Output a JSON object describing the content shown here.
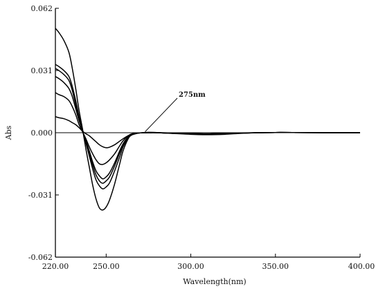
{
  "chart_data": {
    "type": "line",
    "title": "",
    "xlabel": "Wavelength(nm)",
    "ylabel": "Abs",
    "xlim": [
      220,
      400
    ],
    "ylim": [
      -0.062,
      0.062
    ],
    "x_ticks": [
      220,
      250,
      300,
      350,
      400
    ],
    "x_tick_labels": [
      "220.00",
      "250.00",
      "300.00",
      "350.00",
      "400.00"
    ],
    "y_ticks": [
      0.062,
      0.031,
      0.0,
      -0.031,
      -0.062
    ],
    "y_tick_labels": [
      "0.062",
      "0.031",
      "0.000",
      "-0.031",
      "-0.062"
    ],
    "grid": false,
    "legend": "none",
    "reference_line_y": 0,
    "annotation": {
      "text": "275nm",
      "x": 273,
      "y": 0.0005
    },
    "series": [
      {
        "x": [
          220,
          222,
          225,
          228,
          230,
          232,
          234,
          236,
          238,
          240,
          242,
          244,
          246,
          248,
          250,
          252,
          255,
          258,
          260,
          263,
          265,
          268,
          270,
          275,
          280,
          290,
          300,
          310,
          320,
          330,
          340,
          350,
          360,
          380,
          400
        ],
        "values": [
          0.008,
          0.0075,
          0.007,
          0.006,
          0.005,
          0.004,
          0.0025,
          0.0008,
          -0.0005,
          -0.0015,
          -0.003,
          -0.0045,
          -0.006,
          -0.007,
          -0.0075,
          -0.0072,
          -0.006,
          -0.0042,
          -0.003,
          -0.0015,
          -0.0008,
          -0.0003,
          -0.0001,
          0,
          0,
          -0.0004,
          -0.0008,
          -0.001,
          -0.0008,
          -0.0003,
          0,
          0.0001,
          0.0001,
          0,
          0
        ]
      },
      {
        "x": [
          220,
          222,
          225,
          228,
          230,
          232,
          234,
          236,
          238,
          240,
          242,
          244,
          246,
          248,
          250,
          252,
          255,
          258,
          260,
          263,
          265,
          268,
          270,
          275,
          280,
          290,
          300,
          310,
          320,
          330,
          340,
          350,
          360,
          380,
          400
        ],
        "values": [
          0.02,
          0.019,
          0.018,
          0.016,
          0.013,
          0.009,
          0.004,
          0.0005,
          -0.003,
          -0.007,
          -0.0105,
          -0.0135,
          -0.0155,
          -0.0158,
          -0.015,
          -0.0135,
          -0.0105,
          -0.0065,
          -0.004,
          -0.0015,
          -0.0006,
          -0.0002,
          -0.0001,
          0,
          0,
          -0.0003,
          -0.0006,
          -0.0008,
          -0.0006,
          -0.0002,
          0,
          0.0001,
          0.0001,
          0,
          0
        ]
      },
      {
        "x": [
          220,
          222,
          225,
          228,
          230,
          232,
          234,
          236,
          238,
          240,
          242,
          244,
          246,
          248,
          250,
          252,
          255,
          258,
          260,
          263,
          265,
          268,
          270,
          275,
          280,
          290,
          300,
          310,
          320,
          330,
          340,
          350,
          360,
          380,
          400
        ],
        "values": [
          0.028,
          0.027,
          0.025,
          0.022,
          0.018,
          0.012,
          0.006,
          0.001,
          -0.004,
          -0.009,
          -0.0145,
          -0.019,
          -0.0215,
          -0.023,
          -0.022,
          -0.02,
          -0.015,
          -0.009,
          -0.0055,
          -0.002,
          -0.0008,
          -0.0003,
          -0.0001,
          0,
          0,
          -0.0003,
          -0.0005,
          -0.0007,
          -0.0005,
          -0.0002,
          0,
          0.0001,
          0.0001,
          0,
          0
        ]
      },
      {
        "x": [
          220,
          222,
          225,
          228,
          230,
          232,
          234,
          236,
          238,
          240,
          242,
          244,
          246,
          248,
          250,
          252,
          255,
          258,
          260,
          263,
          265,
          268,
          270,
          275,
          280,
          290,
          300,
          310,
          320,
          330,
          340,
          350,
          360,
          380,
          400
        ],
        "values": [
          0.032,
          0.031,
          0.029,
          0.026,
          0.021,
          0.014,
          0.007,
          0.001,
          -0.0045,
          -0.01,
          -0.016,
          -0.021,
          -0.024,
          -0.0252,
          -0.024,
          -0.022,
          -0.0165,
          -0.01,
          -0.006,
          -0.0022,
          -0.0009,
          -0.0003,
          -0.0001,
          0,
          0,
          -0.0003,
          -0.0005,
          -0.0006,
          -0.0004,
          -0.0002,
          0,
          0.0001,
          0.0001,
          0,
          0
        ]
      },
      {
        "x": [
          220,
          222,
          225,
          228,
          230,
          232,
          234,
          236,
          238,
          240,
          242,
          244,
          246,
          248,
          250,
          252,
          255,
          258,
          260,
          263,
          265,
          268,
          270,
          275,
          280,
          290,
          300,
          310,
          320,
          330,
          340,
          350,
          360,
          380,
          400
        ],
        "values": [
          0.034,
          0.033,
          0.031,
          0.028,
          0.023,
          0.016,
          0.008,
          0.0015,
          -0.005,
          -0.0115,
          -0.018,
          -0.0235,
          -0.0265,
          -0.028,
          -0.027,
          -0.025,
          -0.019,
          -0.012,
          -0.007,
          -0.0025,
          -0.001,
          -0.0003,
          -0.0001,
          0,
          0,
          -0.0003,
          -0.0005,
          -0.0006,
          -0.0004,
          -0.0002,
          0,
          0.0001,
          0.0001,
          0,
          0
        ]
      },
      {
        "x": [
          220,
          222,
          225,
          228,
          230,
          232,
          234,
          236,
          238,
          240,
          242,
          244,
          246,
          248,
          250,
          252,
          255,
          258,
          260,
          263,
          265,
          268,
          270,
          275,
          280,
          290,
          300,
          310,
          320,
          330,
          340,
          350,
          360,
          380,
          400
        ],
        "values": [
          0.052,
          0.05,
          0.046,
          0.04,
          0.032,
          0.022,
          0.011,
          0.002,
          -0.008,
          -0.017,
          -0.026,
          -0.033,
          -0.0375,
          -0.0385,
          -0.037,
          -0.0335,
          -0.0255,
          -0.0155,
          -0.009,
          -0.003,
          -0.0012,
          -0.0004,
          -0.0001,
          0.0002,
          0.0001,
          -0.0002,
          -0.0004,
          -0.0005,
          -0.0003,
          -0.0001,
          0,
          0.0001,
          0.0001,
          0,
          0
        ]
      }
    ]
  }
}
